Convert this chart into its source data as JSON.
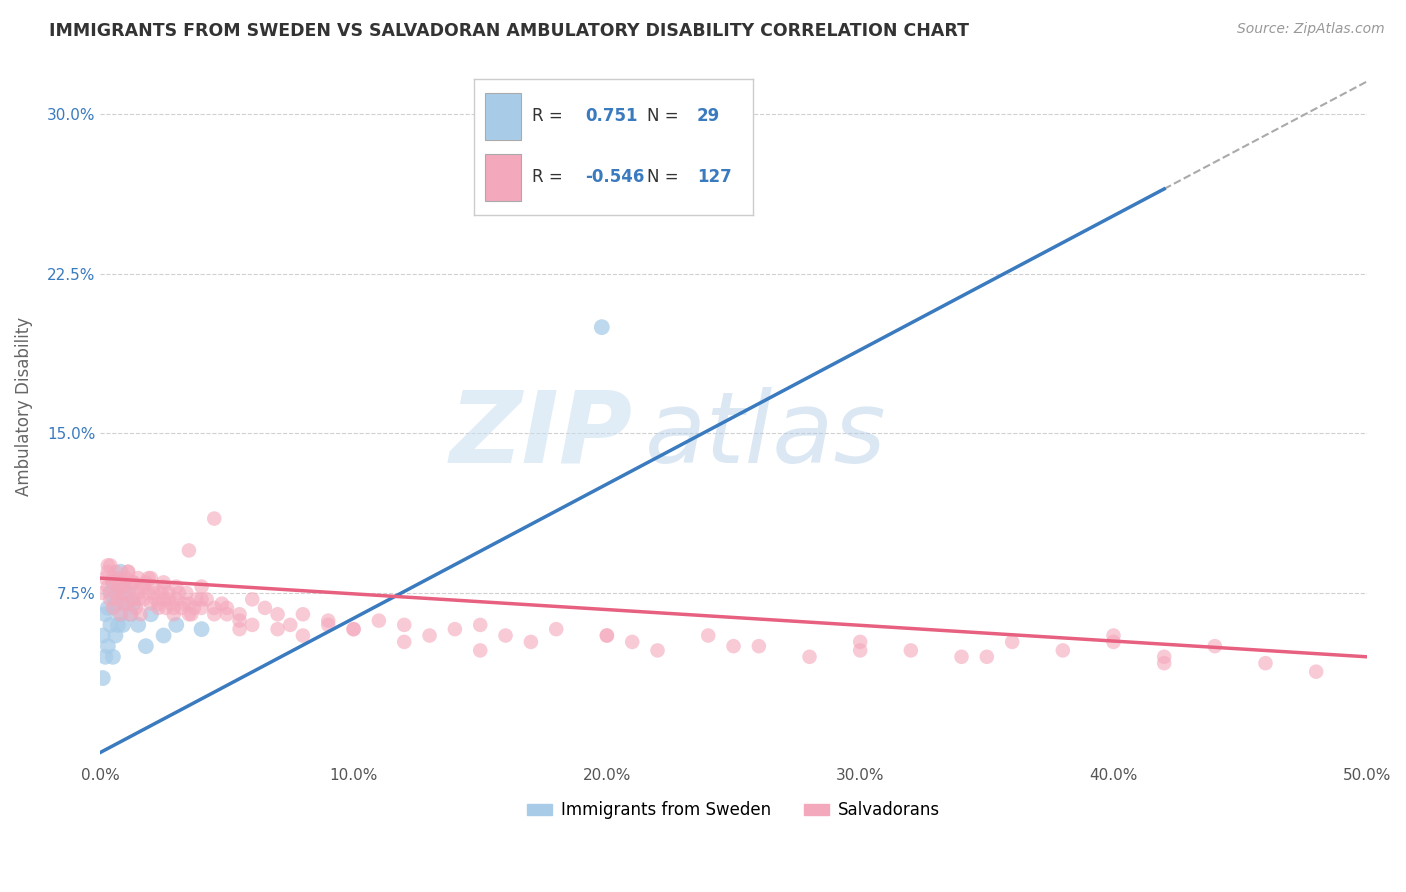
{
  "title": "IMMIGRANTS FROM SWEDEN VS SALVADORAN AMBULATORY DISABILITY CORRELATION CHART",
  "source": "Source: ZipAtlas.com",
  "ylabel": "Ambulatory Disability",
  "xmin": 0.0,
  "xmax": 0.5,
  "ymin": -0.005,
  "ymax": 0.33,
  "xticks": [
    0.0,
    0.1,
    0.2,
    0.3,
    0.4,
    0.5
  ],
  "xtick_labels": [
    "0.0%",
    "10.0%",
    "20.0%",
    "30.0%",
    "40.0%",
    "50.0%"
  ],
  "yticks": [
    0.075,
    0.15,
    0.225,
    0.3
  ],
  "ytick_labels": [
    "7.5%",
    "15.0%",
    "22.5%",
    "30.0%"
  ],
  "grid_color": "#d0d0d0",
  "background_color": "#ffffff",
  "legend_R1": "0.751",
  "legend_N1": "29",
  "legend_R2": "-0.546",
  "legend_N2": "127",
  "blue_color": "#a8cce8",
  "pink_color": "#f4a8bc",
  "blue_line_color": "#3a7abf",
  "pink_line_color": "#e86080",
  "blue_trend_start_x": 0.0,
  "blue_trend_start_y": 0.0,
  "blue_trend_end_x": 0.42,
  "blue_trend_end_y": 0.265,
  "pink_trend_start_x": 0.0,
  "pink_trend_start_y": 0.082,
  "pink_trend_end_x": 0.5,
  "pink_trend_end_y": 0.045,
  "sweden_x": [
    0.001,
    0.001,
    0.002,
    0.002,
    0.003,
    0.003,
    0.004,
    0.004,
    0.005,
    0.005,
    0.006,
    0.006,
    0.007,
    0.007,
    0.008,
    0.008,
    0.009,
    0.009,
    0.01,
    0.011,
    0.012,
    0.013,
    0.015,
    0.018,
    0.02,
    0.025,
    0.03,
    0.04,
    0.198
  ],
  "sweden_y": [
    0.035,
    0.055,
    0.045,
    0.065,
    0.068,
    0.05,
    0.075,
    0.06,
    0.08,
    0.045,
    0.07,
    0.055,
    0.075,
    0.06,
    0.085,
    0.065,
    0.08,
    0.06,
    0.07,
    0.075,
    0.065,
    0.07,
    0.06,
    0.05,
    0.065,
    0.055,
    0.06,
    0.058,
    0.2
  ],
  "salv_x": [
    0.001,
    0.002,
    0.003,
    0.003,
    0.004,
    0.004,
    0.005,
    0.005,
    0.006,
    0.006,
    0.007,
    0.007,
    0.008,
    0.008,
    0.009,
    0.009,
    0.01,
    0.01,
    0.011,
    0.011,
    0.012,
    0.012,
    0.013,
    0.013,
    0.014,
    0.015,
    0.015,
    0.016,
    0.016,
    0.017,
    0.018,
    0.019,
    0.02,
    0.02,
    0.021,
    0.022,
    0.023,
    0.024,
    0.025,
    0.025,
    0.026,
    0.027,
    0.028,
    0.029,
    0.03,
    0.03,
    0.032,
    0.034,
    0.035,
    0.036,
    0.038,
    0.04,
    0.04,
    0.042,
    0.045,
    0.048,
    0.05,
    0.055,
    0.06,
    0.065,
    0.07,
    0.075,
    0.08,
    0.09,
    0.1,
    0.11,
    0.12,
    0.13,
    0.14,
    0.15,
    0.16,
    0.17,
    0.18,
    0.2,
    0.21,
    0.22,
    0.24,
    0.26,
    0.28,
    0.3,
    0.32,
    0.34,
    0.36,
    0.38,
    0.4,
    0.42,
    0.44,
    0.46,
    0.48,
    0.003,
    0.005,
    0.007,
    0.009,
    0.011,
    0.013,
    0.015,
    0.017,
    0.019,
    0.021,
    0.023,
    0.025,
    0.027,
    0.029,
    0.031,
    0.033,
    0.035,
    0.037,
    0.04,
    0.045,
    0.05,
    0.055,
    0.06,
    0.07,
    0.08,
    0.09,
    0.1,
    0.12,
    0.15,
    0.2,
    0.25,
    0.3,
    0.35,
    0.4,
    0.42,
    0.035,
    0.045,
    0.055
  ],
  "salv_y": [
    0.075,
    0.082,
    0.078,
    0.085,
    0.072,
    0.088,
    0.08,
    0.068,
    0.085,
    0.075,
    0.082,
    0.072,
    0.078,
    0.065,
    0.08,
    0.07,
    0.082,
    0.075,
    0.085,
    0.07,
    0.078,
    0.065,
    0.08,
    0.072,
    0.068,
    0.082,
    0.075,
    0.078,
    0.065,
    0.072,
    0.08,
    0.075,
    0.082,
    0.07,
    0.078,
    0.072,
    0.068,
    0.075,
    0.08,
    0.072,
    0.068,
    0.075,
    0.07,
    0.065,
    0.078,
    0.072,
    0.068,
    0.075,
    0.07,
    0.065,
    0.072,
    0.078,
    0.068,
    0.072,
    0.065,
    0.07,
    0.068,
    0.065,
    0.072,
    0.068,
    0.065,
    0.06,
    0.065,
    0.062,
    0.058,
    0.062,
    0.06,
    0.055,
    0.058,
    0.06,
    0.055,
    0.052,
    0.058,
    0.055,
    0.052,
    0.048,
    0.055,
    0.05,
    0.045,
    0.052,
    0.048,
    0.045,
    0.052,
    0.048,
    0.055,
    0.045,
    0.05,
    0.042,
    0.038,
    0.088,
    0.082,
    0.078,
    0.075,
    0.085,
    0.08,
    0.072,
    0.078,
    0.082,
    0.075,
    0.07,
    0.078,
    0.072,
    0.068,
    0.075,
    0.07,
    0.065,
    0.068,
    0.072,
    0.068,
    0.065,
    0.062,
    0.06,
    0.058,
    0.055,
    0.06,
    0.058,
    0.052,
    0.048,
    0.055,
    0.05,
    0.048,
    0.045,
    0.052,
    0.042,
    0.095,
    0.11,
    0.058
  ]
}
